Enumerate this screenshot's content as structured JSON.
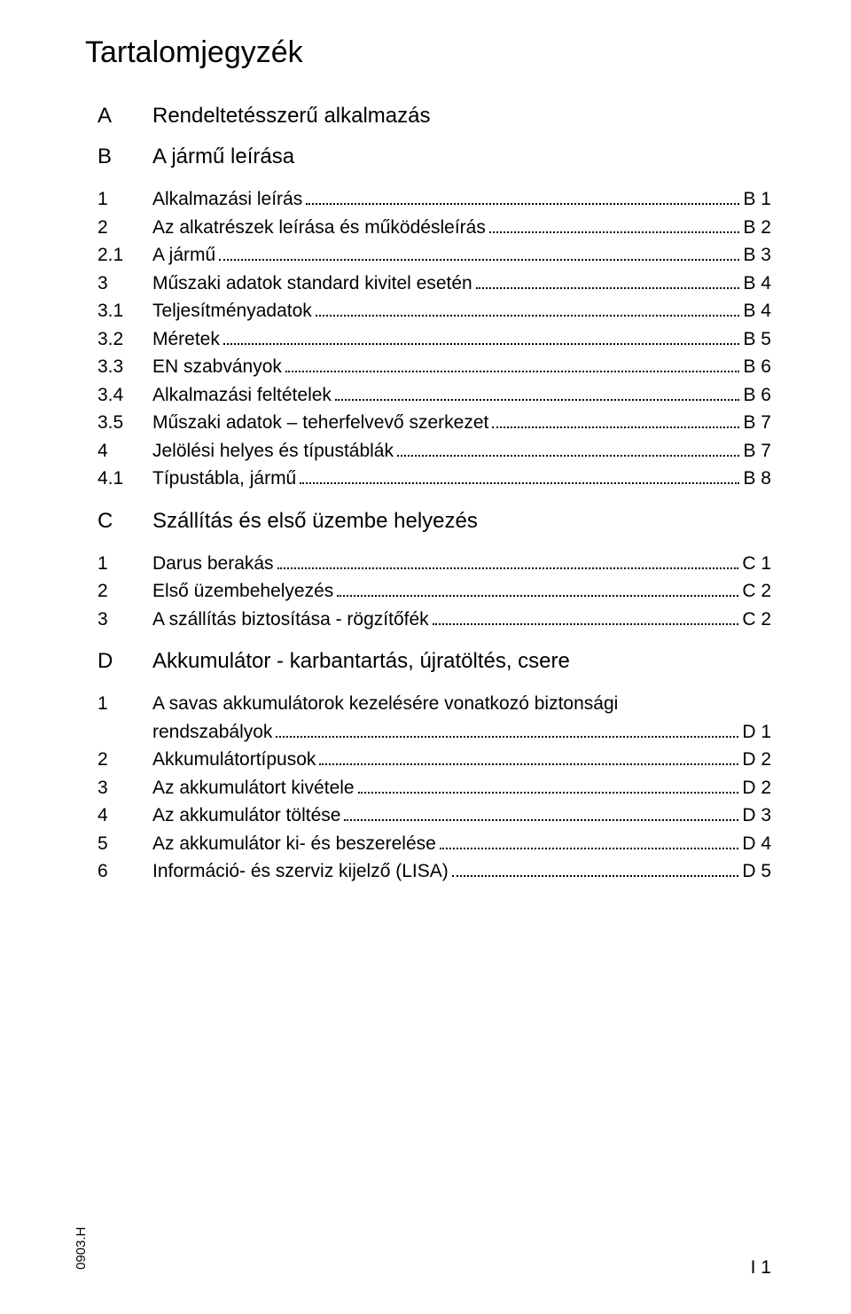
{
  "colors": {
    "text": "#000000",
    "background": "#ffffff"
  },
  "typography": {
    "title_fontsize": 34,
    "section_fontsize": 24,
    "body_fontsize": 21,
    "footer_fontsize": 15,
    "font_family": "Arial"
  },
  "title": "Tartalomjegyzék",
  "sections": {
    "A": {
      "letter": "A",
      "title": "Rendeltetésszerű alkalmazás"
    },
    "B": {
      "letter": "B",
      "title": "A jármű leírása"
    },
    "C": {
      "letter": "C",
      "title": "Szállítás és első üzembe helyezés"
    },
    "D": {
      "letter": "D",
      "title": "Akkumulátor - karbantartás, újratöltés, csere"
    }
  },
  "toc_B": [
    {
      "num": "1",
      "label": "Alkalmazási leírás",
      "page": "B 1"
    },
    {
      "num": "2",
      "label": "Az alkatrészek leírása és működésleírás",
      "page": "B 2"
    },
    {
      "num": "2.1",
      "label": "A jármű",
      "page": "B 3"
    },
    {
      "num": "3",
      "label": "Műszaki adatok standard kivitel esetén",
      "page": "B 4"
    },
    {
      "num": "3.1",
      "label": "Teljesítményadatok",
      "page": "B 4"
    },
    {
      "num": "3.2",
      "label": "Méretek",
      "page": "B 5"
    },
    {
      "num": "3.3",
      "label": "EN szabványok",
      "page": "B 6"
    },
    {
      "num": "3.4",
      "label": "Alkalmazási feltételek",
      "page": "B 6"
    },
    {
      "num": "3.5",
      "label": "Műszaki adatok – teherfelvevő szerkezet",
      "page": "B 7"
    },
    {
      "num": "4",
      "label": "Jelölési helyes és típustáblák",
      "page": "B 7"
    },
    {
      "num": "4.1",
      "label": "Típustábla, jármű",
      "page": "B 8"
    }
  ],
  "toc_C": [
    {
      "num": "1",
      "label": "Darus berakás",
      "page": "C 1"
    },
    {
      "num": "2",
      "label": "Első üzembehelyezés",
      "page": "C 2"
    },
    {
      "num": "3",
      "label": "A szállítás biztosítása - rögzítőfék",
      "page": "C 2"
    }
  ],
  "toc_D_first": {
    "num": "1",
    "label_line1": "A savas akkumulátorok kezelésére vonatkozó biztonsági",
    "label_line2": "rendszabályok",
    "page": "D 1"
  },
  "toc_D_rest": [
    {
      "num": "2",
      "label": "Akkumulátortípusok",
      "page": "D 2"
    },
    {
      "num": "3",
      "label": "Az akkumulátort kivétele",
      "page": "D 2"
    },
    {
      "num": "4",
      "label": "Az akkumulátor töltése",
      "page": "D 3"
    },
    {
      "num": "5",
      "label": "Az akkumulátor ki- és beszerelése",
      "page": "D 4"
    },
    {
      "num": "6",
      "label": "Információ- és szerviz kijelző (LISA)",
      "page": "D 5"
    }
  ],
  "footer": {
    "code": "0903.H",
    "page": "I 1"
  }
}
